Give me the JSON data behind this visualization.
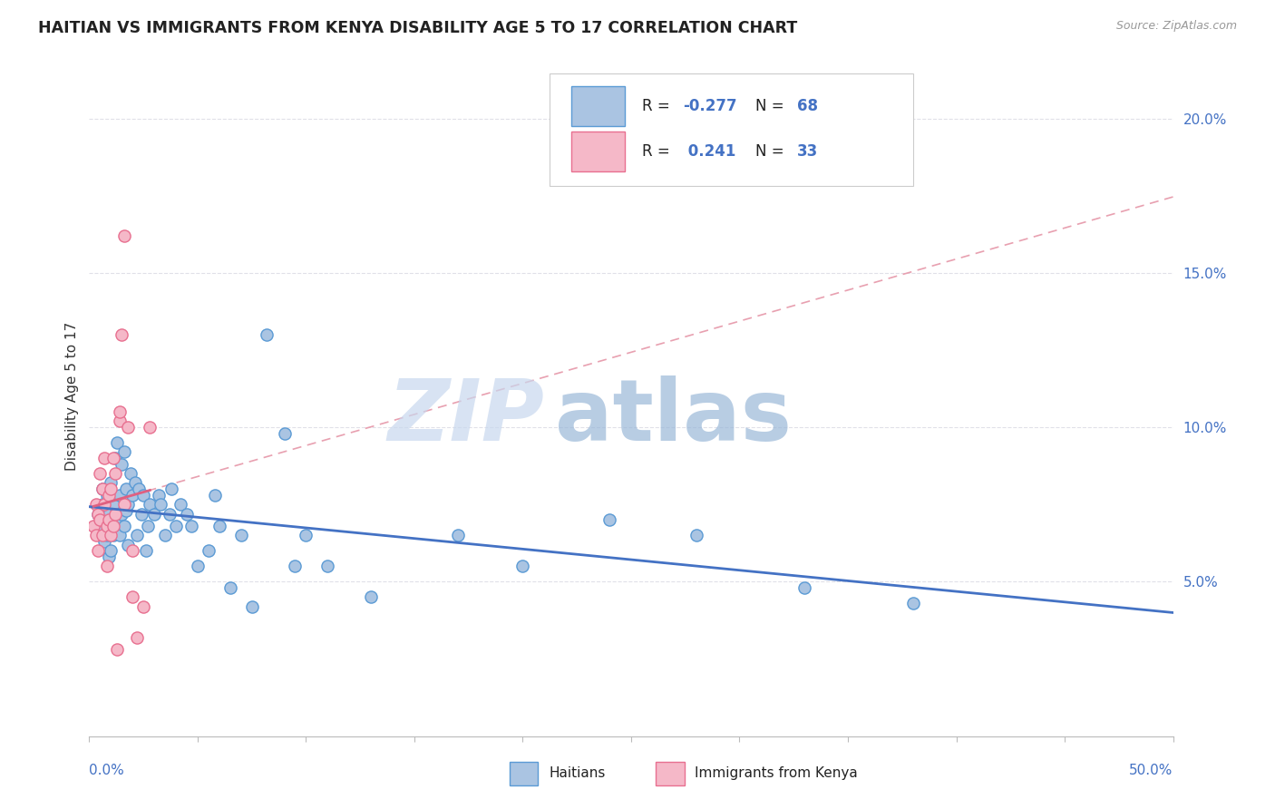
{
  "title": "HAITIAN VS IMMIGRANTS FROM KENYA DISABILITY AGE 5 TO 17 CORRELATION CHART",
  "source": "Source: ZipAtlas.com",
  "ylabel": "Disability Age 5 to 17",
  "right_yticks": [
    "20.0%",
    "15.0%",
    "10.0%",
    "5.0%"
  ],
  "right_ytick_vals": [
    0.2,
    0.15,
    0.1,
    0.05
  ],
  "watermark_zip": "ZIP",
  "watermark_atlas": "atlas",
  "legend_blue_r": "-0.277",
  "legend_blue_n": "68",
  "legend_pink_r": "0.241",
  "legend_pink_n": "33",
  "blue_fill": "#aac4e2",
  "pink_fill": "#f5b8c8",
  "blue_edge": "#5b9bd5",
  "pink_edge": "#e87090",
  "blue_line_color": "#4472c4",
  "pink_line_color": "#e06080",
  "pink_dashed_color": "#e8a0b0",
  "grid_color": "#e0e0e8",
  "x_min": 0.0,
  "x_max": 0.5,
  "y_min": 0.0,
  "y_max": 0.22,
  "blue_scatter_x": [
    0.004,
    0.005,
    0.006,
    0.006,
    0.007,
    0.007,
    0.008,
    0.008,
    0.009,
    0.009,
    0.01,
    0.01,
    0.01,
    0.011,
    0.011,
    0.012,
    0.012,
    0.013,
    0.013,
    0.014,
    0.014,
    0.015,
    0.015,
    0.016,
    0.016,
    0.017,
    0.017,
    0.018,
    0.018,
    0.019,
    0.02,
    0.021,
    0.022,
    0.023,
    0.024,
    0.025,
    0.026,
    0.027,
    0.028,
    0.03,
    0.032,
    0.033,
    0.035,
    0.037,
    0.038,
    0.04,
    0.042,
    0.045,
    0.047,
    0.05,
    0.055,
    0.058,
    0.06,
    0.065,
    0.07,
    0.075,
    0.082,
    0.09,
    0.095,
    0.1,
    0.11,
    0.13,
    0.17,
    0.2,
    0.24,
    0.28,
    0.33,
    0.38
  ],
  "blue_scatter_y": [
    0.072,
    0.068,
    0.075,
    0.08,
    0.07,
    0.063,
    0.078,
    0.065,
    0.072,
    0.058,
    0.082,
    0.07,
    0.06,
    0.075,
    0.065,
    0.09,
    0.068,
    0.095,
    0.07,
    0.078,
    0.065,
    0.088,
    0.072,
    0.092,
    0.068,
    0.08,
    0.073,
    0.075,
    0.062,
    0.085,
    0.078,
    0.082,
    0.065,
    0.08,
    0.072,
    0.078,
    0.06,
    0.068,
    0.075,
    0.072,
    0.078,
    0.075,
    0.065,
    0.072,
    0.08,
    0.068,
    0.075,
    0.072,
    0.068,
    0.055,
    0.06,
    0.078,
    0.068,
    0.048,
    0.065,
    0.042,
    0.13,
    0.098,
    0.055,
    0.065,
    0.055,
    0.045,
    0.065,
    0.055,
    0.07,
    0.065,
    0.048,
    0.043
  ],
  "pink_scatter_x": [
    0.002,
    0.003,
    0.003,
    0.004,
    0.004,
    0.005,
    0.005,
    0.006,
    0.006,
    0.007,
    0.007,
    0.008,
    0.008,
    0.009,
    0.009,
    0.01,
    0.01,
    0.011,
    0.011,
    0.012,
    0.012,
    0.013,
    0.014,
    0.015,
    0.016,
    0.018,
    0.02,
    0.022,
    0.025,
    0.028,
    0.014,
    0.016,
    0.02
  ],
  "pink_scatter_y": [
    0.068,
    0.065,
    0.075,
    0.072,
    0.06,
    0.085,
    0.07,
    0.08,
    0.065,
    0.09,
    0.075,
    0.068,
    0.055,
    0.078,
    0.07,
    0.08,
    0.065,
    0.09,
    0.068,
    0.085,
    0.072,
    0.028,
    0.102,
    0.13,
    0.162,
    0.1,
    0.045,
    0.032,
    0.042,
    0.1,
    0.105,
    0.075,
    0.06
  ]
}
